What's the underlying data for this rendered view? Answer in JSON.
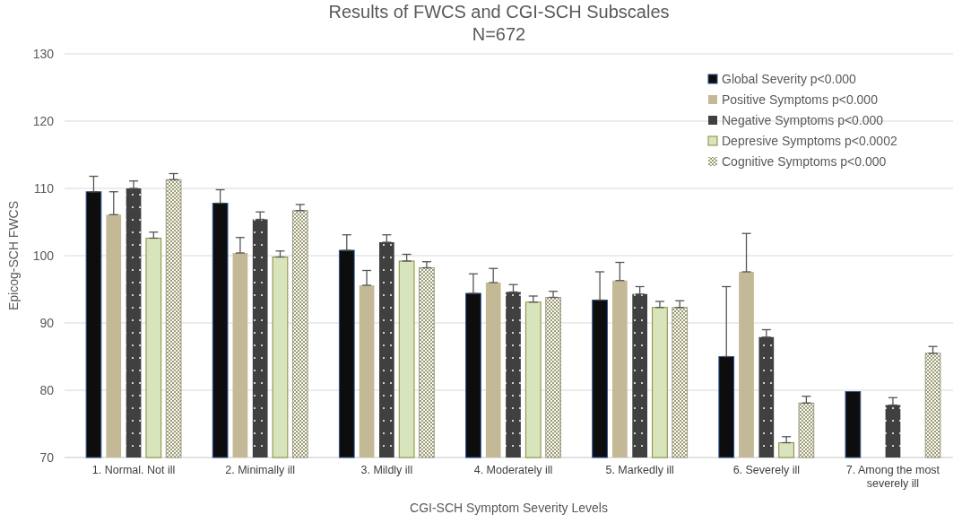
{
  "chart_data": {
    "type": "bar",
    "title": "Results of FWCS and CGI-SCH Subscales",
    "subtitle": "N=672",
    "xlabel": "CGI-SCH Symptom Severity Levels",
    "ylabel": "Epicog-SCH FWCS",
    "categories": [
      "1. Normal. Not ill",
      "2. Minimally ill",
      "3. Mildly ill",
      "4. Moderately ill",
      "5. Markedly ill",
      "6. Severely ill",
      "7. Among the most severely ill"
    ],
    "ylim": [
      70,
      130
    ],
    "yticks": [
      70,
      80,
      90,
      100,
      110,
      120,
      130
    ],
    "grid": "y",
    "legend": "top right",
    "series": [
      {
        "name": "Global Severity p<0.000",
        "color": "#0d0d0d",
        "values": [
          109.5,
          107.8,
          100.8,
          94.4,
          93.4,
          85.0,
          79.8
        ],
        "errors": [
          [
            109.5,
            111.8
          ],
          [
            107.8,
            109.8
          ],
          [
            100.8,
            103.1
          ],
          [
            94.4,
            97.3
          ],
          [
            93.4,
            97.6
          ],
          [
            85.0,
            95.4
          ],
          null
        ]
      },
      {
        "name": "Positive Symptoms p<0.000",
        "color": "#c4b996",
        "values": [
          106.1,
          100.4,
          95.6,
          96.0,
          96.3,
          97.6,
          null
        ],
        "errors": [
          [
            106.1,
            109.5
          ],
          [
            100.4,
            102.7
          ],
          [
            95.6,
            97.8
          ],
          [
            96.0,
            98.1
          ],
          [
            96.3,
            99.0
          ],
          [
            97.6,
            103.3
          ],
          null
        ]
      },
      {
        "name": "Negative Symptoms p<0.000",
        "color": "#404040",
        "values": [
          110.0,
          105.4,
          102.0,
          94.6,
          94.3,
          87.9,
          77.8
        ],
        "errors": [
          [
            110.0,
            111.1
          ],
          [
            105.4,
            106.5
          ],
          [
            102.0,
            103.1
          ],
          [
            94.6,
            95.7
          ],
          [
            94.3,
            95.4
          ],
          [
            87.9,
            89.0
          ],
          [
            77.8,
            78.9
          ]
        ]
      },
      {
        "name": "Depresive Symptoms p<0.0002",
        "color": "#d8e4bc",
        "values": [
          102.6,
          99.8,
          99.2,
          93.1,
          92.3,
          72.2,
          null
        ],
        "errors": [
          [
            102.6,
            103.5
          ],
          [
            99.8,
            100.7
          ],
          [
            99.2,
            100.2
          ],
          [
            93.1,
            94.0
          ],
          [
            92.3,
            93.2
          ],
          [
            72.2,
            73.1
          ],
          null
        ]
      },
      {
        "name": "Cognitive Symptoms p<0.000",
        "color": "#9a9a85",
        "values": [
          111.3,
          106.7,
          98.2,
          93.8,
          92.3,
          78.1,
          85.5
        ],
        "errors": [
          [
            111.3,
            112.2
          ],
          [
            106.7,
            107.6
          ],
          [
            98.2,
            99.1
          ],
          [
            93.8,
            94.7
          ],
          [
            92.3,
            93.3
          ],
          [
            78.1,
            79.1
          ],
          [
            85.5,
            86.5
          ]
        ]
      }
    ]
  }
}
